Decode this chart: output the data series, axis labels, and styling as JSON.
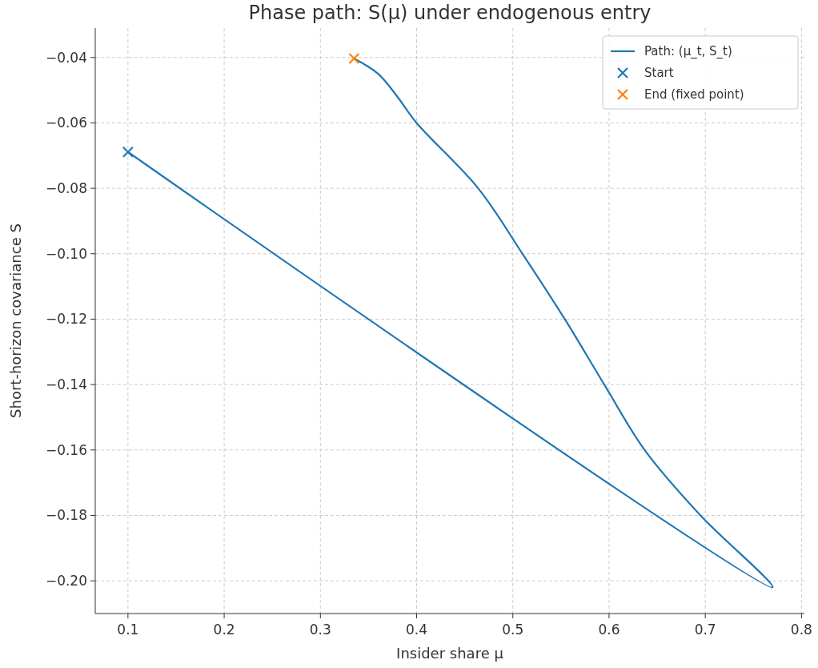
{
  "chart_data": {
    "type": "line",
    "title": "Phase path: S(μ) under endogenous entry",
    "xlabel": "Insider share μ",
    "ylabel": "Short-horizon covariance S",
    "series": [
      {
        "name": "Path: (μ_t, S_t)",
        "color": "#1f77b4",
        "x": [
          0.1,
          0.77,
          0.695,
          0.637,
          0.595,
          0.554,
          0.51,
          0.464,
          0.4,
          0.38,
          0.36,
          0.335
        ],
        "values": [
          -0.0689,
          -0.202,
          -0.18,
          -0.16,
          -0.14,
          -0.12,
          -0.1,
          -0.08,
          -0.06,
          -0.052,
          -0.045,
          -0.0403
        ]
      },
      {
        "name": "Start",
        "color": "#1f77b4",
        "type": "scatter",
        "marker": "cross",
        "x": [
          0.1
        ],
        "values": [
          -0.0689
        ]
      },
      {
        "name": "End (fixed point)",
        "color": "#ff7f0e",
        "type": "scatter",
        "marker": "cross",
        "x": [
          0.335
        ],
        "values": [
          -0.0403
        ]
      }
    ],
    "xlim": [
      0.066,
      0.803
    ],
    "ylim": [
      -0.21,
      -0.031
    ],
    "xticks": [
      {
        "value": 0.1,
        "label": "0.1"
      },
      {
        "value": 0.2,
        "label": "0.2"
      },
      {
        "value": 0.3,
        "label": "0.3"
      },
      {
        "value": 0.4,
        "label": "0.4"
      },
      {
        "value": 0.5,
        "label": "0.5"
      },
      {
        "value": 0.6,
        "label": "0.6"
      },
      {
        "value": 0.7,
        "label": "0.7"
      },
      {
        "value": 0.8,
        "label": "0.8"
      }
    ],
    "yticks": [
      {
        "value": -0.2,
        "label": "−0.20"
      },
      {
        "value": -0.18,
        "label": "−0.18"
      },
      {
        "value": -0.16,
        "label": "−0.16"
      },
      {
        "value": -0.14,
        "label": "−0.14"
      },
      {
        "value": -0.12,
        "label": "−0.12"
      },
      {
        "value": -0.1,
        "label": "−0.10"
      },
      {
        "value": -0.08,
        "label": "−0.08"
      },
      {
        "value": -0.06,
        "label": "−0.06"
      },
      {
        "value": -0.04,
        "label": "−0.04"
      }
    ],
    "grid": true,
    "legend": "top right"
  }
}
